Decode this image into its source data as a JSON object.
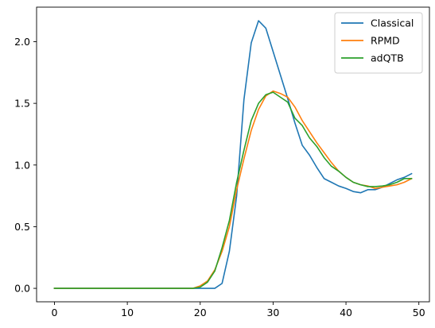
{
  "chart_data": {
    "type": "line",
    "title": "",
    "xlabel": "",
    "ylabel": "",
    "xlim": [
      -2.45,
      51.45
    ],
    "ylim": [
      -0.109,
      2.28
    ],
    "xticks": [
      0,
      10,
      20,
      30,
      40,
      50
    ],
    "xtick_labels": [
      "0",
      "10",
      "20",
      "30",
      "40",
      "50"
    ],
    "yticks": [
      0.0,
      0.5,
      1.0,
      1.5,
      2.0
    ],
    "ytick_labels": [
      "0.0",
      "0.5",
      "1.0",
      "1.5",
      "2.0"
    ],
    "grid": false,
    "legend_position": "top-right",
    "x": [
      0,
      1,
      2,
      3,
      4,
      5,
      6,
      7,
      8,
      9,
      10,
      11,
      12,
      13,
      14,
      15,
      16,
      17,
      18,
      19,
      20,
      21,
      22,
      23,
      24,
      25,
      26,
      27,
      28,
      29,
      30,
      31,
      32,
      33,
      34,
      35,
      36,
      37,
      38,
      39,
      40,
      41,
      42,
      43,
      44,
      45,
      46,
      47,
      48,
      49
    ],
    "series": [
      {
        "name": "Classical",
        "color": "#1f77b4",
        "values": [
          0,
          0,
          0,
          0,
          0,
          0,
          0,
          0,
          0,
          0,
          0,
          0,
          0,
          0,
          0,
          0,
          0,
          0,
          0,
          0,
          0,
          0,
          0,
          0.04,
          0.3,
          0.75,
          1.53,
          1.99,
          2.17,
          2.11,
          1.92,
          1.73,
          1.54,
          1.34,
          1.16,
          1.08,
          0.98,
          0.89,
          0.86,
          0.83,
          0.81,
          0.785,
          0.775,
          0.8,
          0.8,
          0.82,
          0.85,
          0.88,
          0.9,
          0.93
        ]
      },
      {
        "name": "RPMD",
        "color": "#ff7f0e",
        "values": [
          0,
          0,
          0,
          0,
          0,
          0,
          0,
          0,
          0,
          0,
          0,
          0,
          0,
          0,
          0,
          0,
          0,
          0,
          0,
          0,
          0.02,
          0.06,
          0.15,
          0.3,
          0.5,
          0.8,
          1.05,
          1.28,
          1.45,
          1.56,
          1.6,
          1.58,
          1.55,
          1.47,
          1.36,
          1.27,
          1.18,
          1.1,
          1.02,
          0.95,
          0.9,
          0.86,
          0.84,
          0.83,
          0.81,
          0.82,
          0.83,
          0.84,
          0.86,
          0.89
        ]
      },
      {
        "name": "adQTB",
        "color": "#2ca02c",
        "values": [
          0,
          0,
          0,
          0,
          0,
          0,
          0,
          0,
          0,
          0,
          0,
          0,
          0,
          0,
          0,
          0,
          0,
          0,
          0,
          0,
          0.01,
          0.05,
          0.14,
          0.33,
          0.55,
          0.86,
          1.12,
          1.36,
          1.5,
          1.57,
          1.59,
          1.55,
          1.51,
          1.38,
          1.32,
          1.22,
          1.15,
          1.06,
          0.99,
          0.95,
          0.9,
          0.86,
          0.84,
          0.825,
          0.825,
          0.83,
          0.84,
          0.86,
          0.89,
          0.89
        ]
      }
    ]
  }
}
